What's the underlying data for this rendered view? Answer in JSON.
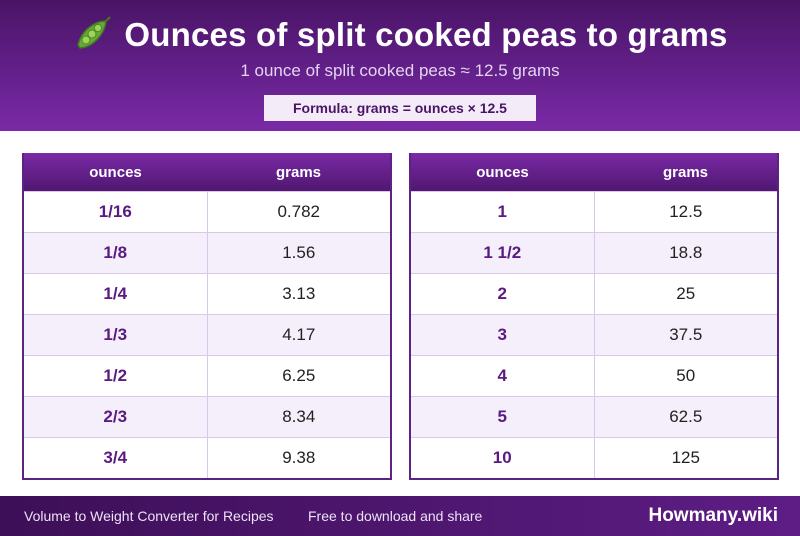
{
  "header": {
    "icon": "peapod-icon",
    "title": "Ounces of split cooked peas to grams",
    "subtitle": "1 ounce of split cooked peas ≈ 12.5 grams",
    "formula": "Formula: grams = ounces × 12.5"
  },
  "colors": {
    "primary": "#5e2284",
    "header_dark": "#4a1466",
    "row_alt": "#f4effa"
  },
  "tables": [
    {
      "columns": [
        "ounces",
        "grams"
      ],
      "rows": [
        [
          "1/16",
          "0.782"
        ],
        [
          "1/8",
          "1.56"
        ],
        [
          "1/4",
          "3.13"
        ],
        [
          "1/3",
          "4.17"
        ],
        [
          "1/2",
          "6.25"
        ],
        [
          "2/3",
          "8.34"
        ],
        [
          "3/4",
          "9.38"
        ]
      ]
    },
    {
      "columns": [
        "ounces",
        "grams"
      ],
      "rows": [
        [
          "1",
          "12.5"
        ],
        [
          "1 1/2",
          "18.8"
        ],
        [
          "2",
          "25"
        ],
        [
          "3",
          "37.5"
        ],
        [
          "4",
          "50"
        ],
        [
          "5",
          "62.5"
        ],
        [
          "10",
          "125"
        ]
      ]
    }
  ],
  "footer": {
    "left_text": "Volume to Weight Converter for Recipes",
    "middle_text": "Free to download and share",
    "brand": "Howmany.wiki"
  }
}
